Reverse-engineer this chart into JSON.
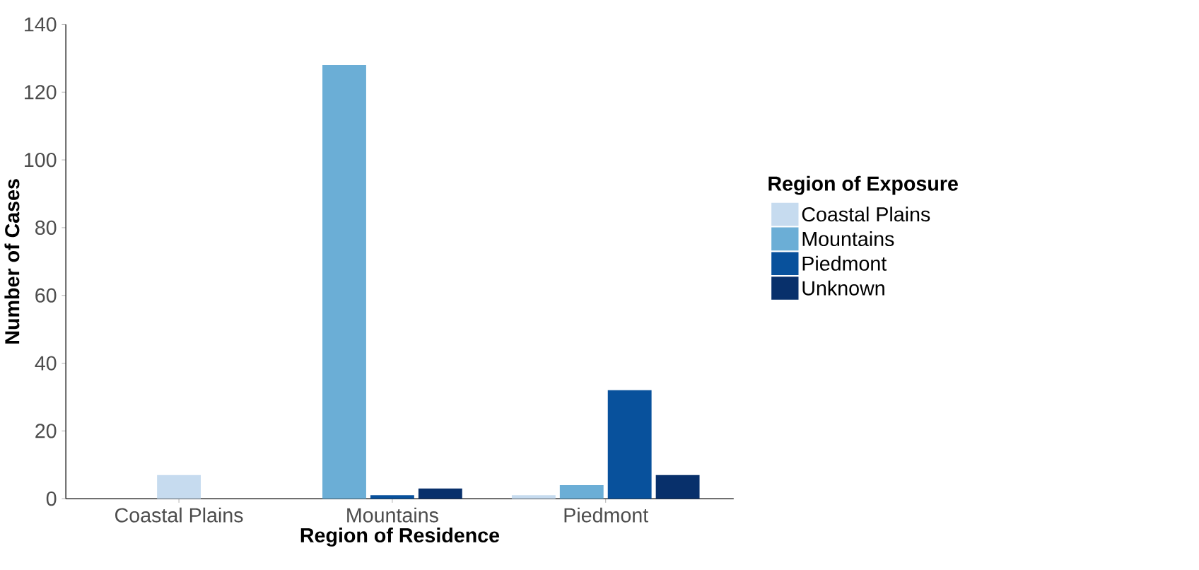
{
  "chart_data": {
    "type": "bar",
    "xlabel": "Region of Residence",
    "ylabel": "Number of Cases",
    "legend_title": "Region of Exposure",
    "legend": "right",
    "categories": [
      "Coastal Plains",
      "Mountains",
      "Piedmont"
    ],
    "series": [
      {
        "name": "Coastal Plains",
        "color": "#c6dbef",
        "values": [
          7,
          null,
          1
        ]
      },
      {
        "name": "Mountains",
        "color": "#6baed6",
        "values": [
          null,
          128,
          4
        ]
      },
      {
        "name": "Piedmont",
        "color": "#08519c",
        "values": [
          null,
          1,
          32
        ]
      },
      {
        "name": "Unknown",
        "color": "#08306b",
        "values": [
          null,
          3,
          7
        ]
      }
    ],
    "ylim": [
      0,
      140
    ],
    "yticks": [
      0,
      20,
      40,
      60,
      80,
      100,
      120,
      140
    ]
  }
}
